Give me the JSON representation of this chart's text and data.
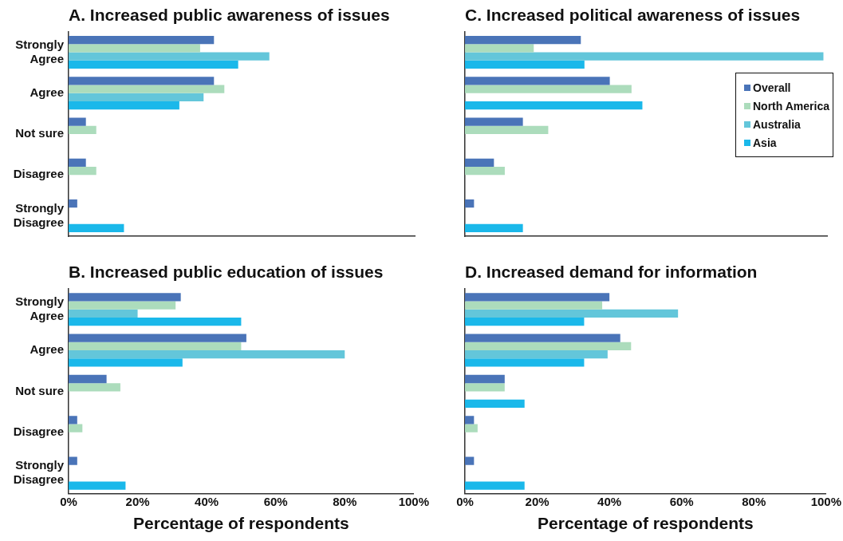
{
  "chart_data": [
    {
      "type": "bar",
      "orientation": "horizontal",
      "title": "A. Increased public awareness of issues",
      "categories": [
        "Strongly Agree",
        "Agree",
        "Not sure",
        "Disagree",
        "Strongly Disagree"
      ],
      "series": [
        {
          "color": "#4a74b8",
          "values": [
            42,
            42,
            5,
            5,
            2.5
          ]
        },
        {
          "color": "#acdcbc",
          "values": [
            38,
            45,
            8,
            8,
            null
          ]
        },
        {
          "color": "#63c6da",
          "values": [
            58,
            39,
            null,
            null,
            null
          ]
        },
        {
          "color": "#1ab8ea",
          "values": [
            49,
            32,
            null,
            null,
            16
          ]
        }
      ],
      "xlim": [
        0,
        100
      ],
      "tick_labels": "y",
      "grid": false,
      "legend": false
    },
    {
      "type": "bar",
      "orientation": "horizontal",
      "title": "C. Increased political awareness of issues",
      "categories": [
        null,
        null,
        null,
        null,
        null
      ],
      "series": [
        {
          "name": "Overall",
          "color": "#4a74b8",
          "values": [
            32,
            40,
            16,
            8,
            2.5
          ]
        },
        {
          "name": "North America",
          "color": "#acdcbc",
          "values": [
            19,
            46,
            23,
            11,
            null
          ]
        },
        {
          "name": "Australia",
          "color": "#63c6da",
          "values": [
            99,
            null,
            null,
            null,
            null
          ]
        },
        {
          "name": "Asia",
          "color": "#1ab8ea",
          "values": [
            33,
            49,
            null,
            null,
            16
          ]
        }
      ],
      "xlim": [
        0,
        100
      ],
      "tick_labels": false,
      "grid": false,
      "legend": "right"
    },
    {
      "type": "bar",
      "orientation": "horizontal",
      "title": "B. Increased public education of issues",
      "xlabel": "Percentage of respondents",
      "categories": [
        "Strongly Agree",
        "Agree",
        "Not sure",
        "Disagree",
        "Strongly Disagree"
      ],
      "series": [
        {
          "color": "#4a74b8",
          "values": [
            32.5,
            51.5,
            11,
            2.5,
            2.5
          ]
        },
        {
          "color": "#acdcbc",
          "values": [
            31,
            50,
            15,
            4,
            null
          ]
        },
        {
          "color": "#63c6da",
          "values": [
            20,
            80,
            null,
            null,
            null
          ]
        },
        {
          "color": "#1ab8ea",
          "values": [
            50,
            33,
            null,
            null,
            16.5
          ]
        }
      ],
      "xlim": [
        0,
        100
      ],
      "xticks": [
        {
          "value": 0,
          "label": "0%"
        },
        {
          "value": 20,
          "label": "20%"
        },
        {
          "value": 40,
          "label": "40%"
        },
        {
          "value": 60,
          "label": "60%"
        },
        {
          "value": 80,
          "label": "80%"
        },
        {
          "value": 100,
          "label": "100%"
        }
      ],
      "grid": false,
      "legend": false
    },
    {
      "type": "bar",
      "orientation": "horizontal",
      "title": "D. Increased demand for information",
      "xlabel": "Percentage of respondents",
      "categories": [
        null,
        null,
        null,
        null,
        null
      ],
      "series": [
        {
          "color": "#4a74b8",
          "values": [
            40,
            43,
            11,
            2.5,
            2.5
          ]
        },
        {
          "color": "#acdcbc",
          "values": [
            38,
            46,
            11,
            3.5,
            null
          ]
        },
        {
          "color": "#63c6da",
          "values": [
            59,
            39.5,
            null,
            null,
            null
          ]
        },
        {
          "color": "#1ab8ea",
          "values": [
            33,
            33,
            16.5,
            null,
            16.5
          ]
        }
      ],
      "xlim": [
        0,
        100
      ],
      "xticks": [
        {
          "value": 0,
          "label": "0%"
        },
        {
          "value": 20,
          "label": "20%"
        },
        {
          "value": 40,
          "label": "40%"
        },
        {
          "value": 60,
          "label": "60%"
        },
        {
          "value": 80,
          "label": "80%"
        },
        {
          "value": 100,
          "label": "100%"
        }
      ],
      "tick_labels": "x",
      "grid": false,
      "legend": false
    }
  ]
}
